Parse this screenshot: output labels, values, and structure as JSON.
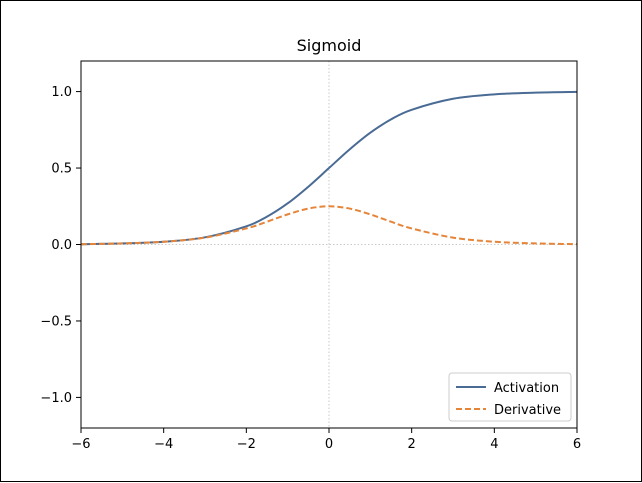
{
  "chart_data": {
    "type": "line",
    "title": "Sigmoid",
    "xlabel": "",
    "ylabel": "",
    "xlim": [
      -6,
      6
    ],
    "ylim": [
      -1.2,
      1.2
    ],
    "xticks": [
      -6,
      -4,
      -2,
      0,
      2,
      4,
      6
    ],
    "xtick_labels": [
      "−6",
      "−4",
      "−2",
      "0",
      "2",
      "4",
      "6"
    ],
    "yticks": [
      -1.0,
      -0.5,
      0.0,
      0.5,
      1.0
    ],
    "ytick_labels": [
      "−1.0",
      "−0.5",
      "0.0",
      "0.5",
      "1.0"
    ],
    "grid": false,
    "reference_lines": [
      {
        "orientation": "horizontal",
        "value": 0,
        "style": "dotted",
        "color": "#bbbbbb"
      },
      {
        "orientation": "vertical",
        "value": 0,
        "style": "dotted",
        "color": "#bbbbbb"
      }
    ],
    "legend": {
      "position": "bottom-right"
    },
    "x": [
      -6,
      -5,
      -4,
      -3,
      -2,
      -1.5,
      -1,
      -0.5,
      0,
      0.5,
      1,
      1.5,
      2,
      3,
      4,
      5,
      6
    ],
    "series": [
      {
        "name": "Activation",
        "style": "solid",
        "color": "#4a6b94",
        "values": [
          0.002,
          0.007,
          0.018,
          0.047,
          0.119,
          0.182,
          0.269,
          0.378,
          0.5,
          0.622,
          0.731,
          0.818,
          0.881,
          0.953,
          0.982,
          0.993,
          0.998
        ]
      },
      {
        "name": "Derivative",
        "style": "dashed",
        "color": "#e5853a",
        "values": [
          0.002,
          0.007,
          0.018,
          0.045,
          0.105,
          0.149,
          0.197,
          0.235,
          0.25,
          0.235,
          0.197,
          0.149,
          0.105,
          0.045,
          0.018,
          0.007,
          0.002
        ]
      }
    ]
  }
}
